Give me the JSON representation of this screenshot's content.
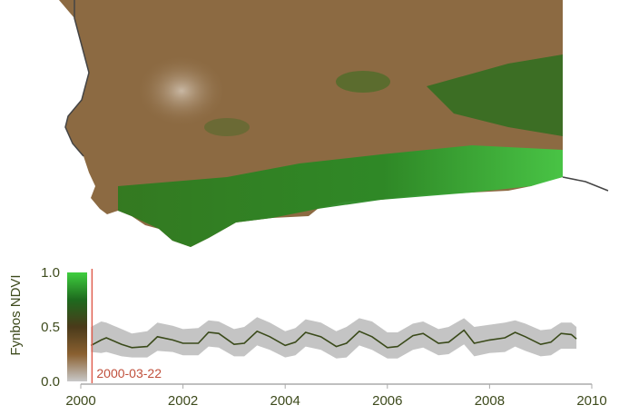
{
  "map": {
    "colors": {
      "land_dry": "#8c6a42",
      "land_mid": "#7a6a3a",
      "vegetation": "#2f7a1f",
      "vegetation_bright": "#3fbf3f",
      "bare": "#b8a48c",
      "coast": "#444444"
    }
  },
  "chart_data": {
    "type": "line",
    "ylabel": "Fynbos NDVI",
    "xlim": [
      2000,
      2010
    ],
    "ylim": [
      0.0,
      1.0
    ],
    "xticks": [
      "2000",
      "2002",
      "2004",
      "2006",
      "2008",
      "2010"
    ],
    "yticks": [
      "0.0",
      "0.5",
      "1.0"
    ],
    "grid": false,
    "current_date_label": "2000-03-22",
    "current_date": 2000.22,
    "colorbar": {
      "range": [
        0.0,
        1.0
      ],
      "colors": [
        "#c8c8c8",
        "#8a6030",
        "#4a3a1a",
        "#1e6a1e",
        "#3fcf3f"
      ]
    },
    "line_color": "#3a4a1a",
    "band_color": "#c4c4c4",
    "marker_color": "#e06050",
    "x": [
      2000.2,
      2000.4,
      2000.5,
      2000.8,
      2001.0,
      2001.3,
      2001.5,
      2001.8,
      2002.0,
      2002.3,
      2002.5,
      2002.7,
      2003.0,
      2003.2,
      2003.45,
      2003.7,
      2004.0,
      2004.2,
      2004.4,
      2004.7,
      2005.0,
      2005.2,
      2005.45,
      2005.7,
      2006.0,
      2006.2,
      2006.5,
      2006.7,
      2007.0,
      2007.2,
      2007.5,
      2007.7,
      2008.0,
      2008.3,
      2008.5,
      2008.7,
      2009.0,
      2009.2,
      2009.4,
      2009.6,
      2009.7
    ],
    "mean": [
      0.33,
      0.38,
      0.4,
      0.34,
      0.31,
      0.32,
      0.41,
      0.38,
      0.35,
      0.35,
      0.45,
      0.44,
      0.34,
      0.35,
      0.46,
      0.41,
      0.33,
      0.36,
      0.45,
      0.41,
      0.32,
      0.35,
      0.46,
      0.41,
      0.31,
      0.32,
      0.42,
      0.44,
      0.35,
      0.36,
      0.47,
      0.35,
      0.38,
      0.4,
      0.45,
      0.41,
      0.34,
      0.36,
      0.44,
      0.43,
      0.39
    ],
    "upper": [
      0.5,
      0.55,
      0.54,
      0.48,
      0.44,
      0.46,
      0.54,
      0.51,
      0.48,
      0.49,
      0.56,
      0.55,
      0.48,
      0.5,
      0.59,
      0.54,
      0.46,
      0.49,
      0.57,
      0.54,
      0.46,
      0.5,
      0.58,
      0.55,
      0.45,
      0.45,
      0.53,
      0.55,
      0.48,
      0.5,
      0.58,
      0.5,
      0.52,
      0.54,
      0.56,
      0.53,
      0.47,
      0.48,
      0.54,
      0.54,
      0.5
    ],
    "lower": [
      0.27,
      0.26,
      0.27,
      0.23,
      0.22,
      0.22,
      0.28,
      0.27,
      0.24,
      0.24,
      0.32,
      0.31,
      0.23,
      0.23,
      0.33,
      0.29,
      0.22,
      0.24,
      0.32,
      0.29,
      0.21,
      0.22,
      0.33,
      0.29,
      0.21,
      0.21,
      0.29,
      0.31,
      0.24,
      0.25,
      0.34,
      0.23,
      0.26,
      0.27,
      0.32,
      0.28,
      0.23,
      0.24,
      0.3,
      0.3,
      0.3
    ]
  }
}
